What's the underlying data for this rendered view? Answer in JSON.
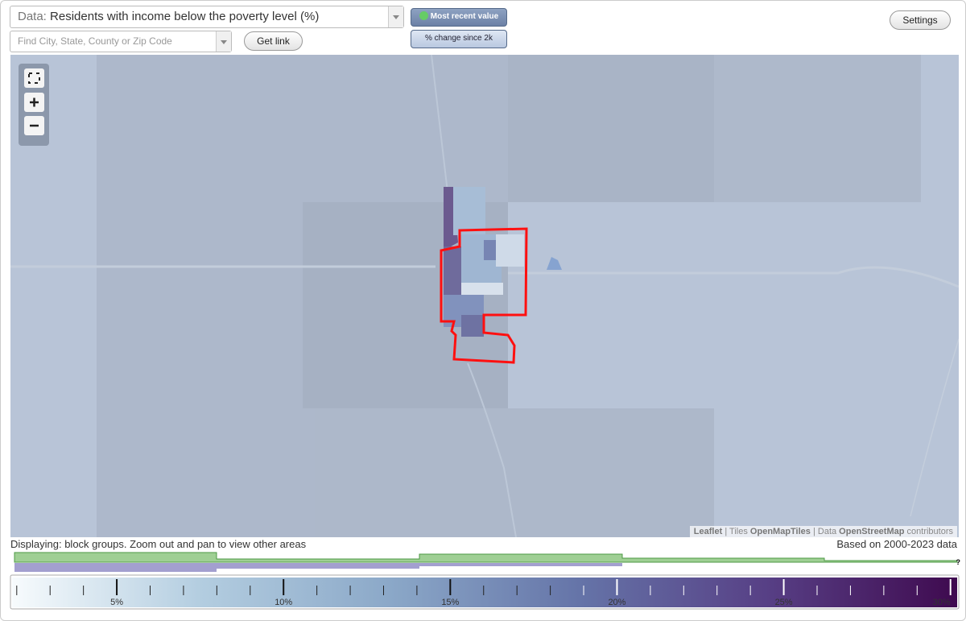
{
  "header": {
    "data_label": "Data:",
    "data_value": "Residents with income below the poverty level (%)",
    "search_placeholder": "Find City, State, County or Zip Code",
    "get_link": "Get link",
    "most_recent": "Most recent value",
    "percent_change": "% change since 2k",
    "settings": "Settings"
  },
  "attribution": [
    "Leaflet",
    " | Tiles ",
    "OpenMapTiles",
    " | Data ",
    "OpenStreetMap",
    " contributors"
  ],
  "status": {
    "displaying": "Displaying: block groups. Zoom out and pan to view other areas",
    "based_on": "Based on 2000-2023 data",
    "help": "?"
  },
  "legend": {
    "range": [
      1.86,
      30.2
    ],
    "gradient": [
      "#f7fbfd",
      "#b3cde0",
      "#8ba8c8",
      "#6574a8",
      "#573f85",
      "#3f0a4f"
    ],
    "ticks": [
      {
        "value": 5,
        "label": "5%"
      },
      {
        "value": 10,
        "label": "10%"
      },
      {
        "value": 15,
        "label": "15%"
      },
      {
        "value": 20,
        "label": "20%"
      },
      {
        "value": 25,
        "label": "25%"
      },
      {
        "value": 30,
        "label": "30%"
      }
    ],
    "minor_ticks": [
      2,
      3,
      4,
      6,
      7,
      8,
      9,
      11,
      12,
      13,
      14,
      16,
      17,
      18,
      19,
      21,
      22,
      23,
      24,
      26,
      27,
      28,
      29
    ]
  }
}
